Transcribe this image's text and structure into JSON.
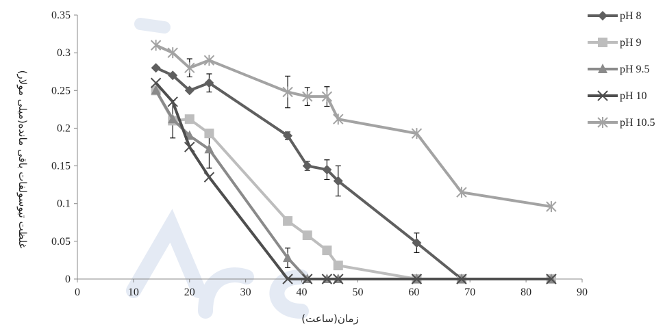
{
  "chart_data": {
    "type": "line",
    "xlabel": "زمان(ساعت)",
    "ylabel": "غلظت تیوسولفات باقی مانده(میلی مولار)",
    "xlim": [
      0,
      90
    ],
    "ylim": [
      0,
      0.35
    ],
    "xticks": [
      "0",
      "10",
      "20",
      "30",
      "40",
      "50",
      "60",
      "70",
      "80",
      "90"
    ],
    "yticks": [
      "0",
      "0.05",
      "0.1",
      "0.15",
      "0.2",
      "0.25",
      "0.3",
      "0.35"
    ],
    "grid": false,
    "legend_position": "right",
    "series": [
      {
        "name": "pH 8",
        "color": "#5f5f5f",
        "marker": "diamond",
        "points": [
          [
            14,
            0.28
          ],
          [
            17,
            0.27
          ],
          [
            20,
            0.25
          ],
          [
            23.5,
            0.26
          ],
          [
            37.5,
            0.19
          ],
          [
            41,
            0.15
          ],
          [
            44.5,
            0.145
          ],
          [
            46.5,
            0.13
          ],
          [
            60.5,
            0.048
          ],
          [
            68.5,
            0
          ],
          [
            84.5,
            0
          ]
        ],
        "errors": [
          [
            23.5,
            0.012
          ],
          [
            37.5,
            0.005
          ],
          [
            41,
            0.006
          ],
          [
            44.5,
            0.013
          ],
          [
            46.5,
            0.02
          ],
          [
            60.5,
            0.013
          ]
        ]
      },
      {
        "name": "pH 9",
        "color": "#bdbdbd",
        "marker": "square",
        "points": [
          [
            14,
            0.25
          ],
          [
            17,
            0.21
          ],
          [
            20,
            0.212
          ],
          [
            23.5,
            0.193
          ],
          [
            37.5,
            0.077
          ],
          [
            41,
            0.058
          ],
          [
            44.5,
            0.038
          ],
          [
            46.5,
            0.018
          ],
          [
            60.5,
            0
          ],
          [
            68.5,
            0
          ],
          [
            84.5,
            0
          ]
        ],
        "errors": []
      },
      {
        "name": "pH 9.5",
        "color": "#8a8a8a",
        "marker": "triangle",
        "points": [
          [
            14,
            0.25
          ],
          [
            17,
            0.212
          ],
          [
            20,
            0.19
          ],
          [
            23.5,
            0.172
          ],
          [
            37.5,
            0.028
          ],
          [
            41,
            0
          ],
          [
            44.5,
            0
          ],
          [
            46.5,
            0
          ],
          [
            60.5,
            0
          ],
          [
            68.5,
            0
          ],
          [
            84.5,
            0
          ]
        ],
        "errors": [
          [
            17,
            0.025
          ],
          [
            23.5,
            0.025
          ],
          [
            37.5,
            0.013
          ]
        ]
      },
      {
        "name": "pH 10",
        "color": "#4e4e4e",
        "marker": "x",
        "points": [
          [
            14,
            0.26
          ],
          [
            17,
            0.235
          ],
          [
            20,
            0.175
          ],
          [
            23.5,
            0.135
          ],
          [
            37.5,
            0
          ],
          [
            41,
            0
          ],
          [
            44.5,
            0
          ],
          [
            46.5,
            0
          ],
          [
            60.5,
            0
          ],
          [
            68.5,
            0
          ],
          [
            84.5,
            0
          ]
        ],
        "errors": []
      },
      {
        "name": "pH 10.5",
        "color": "#a3a3a3",
        "marker": "star",
        "points": [
          [
            14,
            0.31
          ],
          [
            17,
            0.3
          ],
          [
            20,
            0.28
          ],
          [
            23.5,
            0.29
          ],
          [
            37.5,
            0.248
          ],
          [
            41,
            0.242
          ],
          [
            44.5,
            0.242
          ],
          [
            46.5,
            0.212
          ],
          [
            60.5,
            0.193
          ],
          [
            68.5,
            0.115
          ],
          [
            84.5,
            0.096
          ]
        ],
        "errors": [
          [
            20,
            0.012
          ],
          [
            37.5,
            0.021
          ],
          [
            41,
            0.012
          ],
          [
            44.5,
            0.013
          ]
        ]
      }
    ]
  }
}
